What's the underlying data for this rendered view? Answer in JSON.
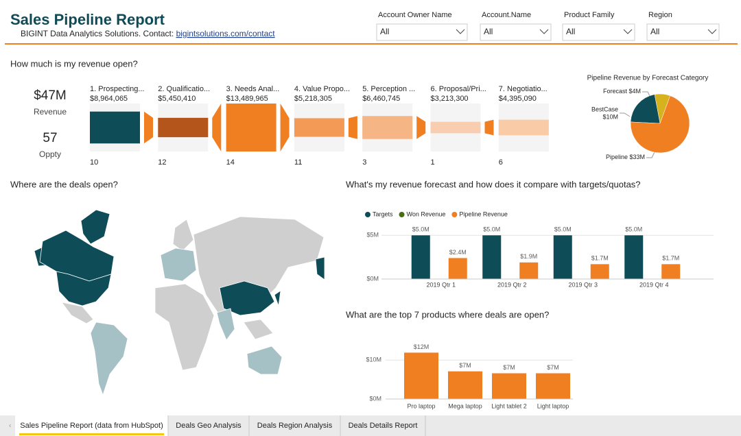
{
  "header": {
    "title": "Sales Pipeline Report",
    "subtitle": "BIGINT Data Analytics Solutions. Contact:",
    "link": "bigintsolutions.com/contact"
  },
  "filters": [
    {
      "label": "Account Owner Name",
      "value": "All"
    },
    {
      "label": "Account.Name",
      "value": "All"
    },
    {
      "label": "Product Family",
      "value": "All"
    },
    {
      "label": "Region",
      "value": "All"
    }
  ],
  "kpis": [
    {
      "value": "$47M",
      "label": "Revenue"
    },
    {
      "value": 57,
      "label": "Oppty"
    }
  ],
  "map": {
    "title": "Where are the deals open?"
  },
  "chart_data": [
    {
      "type": "funnel",
      "title": "How much is my revenue open?",
      "categories": [
        "1. Prospecting...",
        "2. Qualificatio...",
        "3. Needs Anal...",
        "4. Value Propo...",
        "5. Perception ...",
        "6. Proposal/Pri...",
        "7. Negotiatio..."
      ],
      "values": [
        8964065,
        5450410,
        13489965,
        5218305,
        6460745,
        3213300,
        4395090
      ],
      "value_labels": [
        "$8,964,065",
        "$5,450,410",
        "$13,489,965",
        "$5,218,305",
        "$6,460,745",
        "$3,213,300",
        "$4,395,090"
      ],
      "counts": [
        10,
        12,
        14,
        11,
        3,
        1,
        6
      ],
      "colors": [
        "#0e4c57",
        "#b4561c",
        "#f07f22",
        "#f39a57",
        "#f6b585",
        "#f8cdb0",
        "#f9cba6"
      ],
      "connector_color": "#f07f22"
    },
    {
      "type": "pie",
      "title": "Pipeline Revenue by Forecast Category",
      "categories": [
        "Forecast",
        "BestCase",
        "Pipeline"
      ],
      "values": [
        4000000,
        10000000,
        33000000
      ],
      "value_labels": [
        "$4M",
        "$10M",
        "$33M"
      ],
      "colors": [
        "#d7b21f",
        "#0e4c57",
        "#f07f22"
      ]
    },
    {
      "type": "bar",
      "title": "What's my revenue forecast and how does it compare with targets/quotas?",
      "categories": [
        "2019 Qtr 1",
        "2019 Qtr 2",
        "2019 Qtr 3",
        "2019 Qtr 4"
      ],
      "series": [
        {
          "name": "Targets",
          "color": "#0e4c57",
          "values": [
            5.0,
            5.0,
            5.0,
            5.0
          ],
          "value_labels": [
            "$5.0M",
            "$5.0M",
            "$5.0M",
            "$5.0M"
          ]
        },
        {
          "name": "Won Revenue",
          "color": "#4a6b17",
          "values": [
            null,
            null,
            null,
            null
          ]
        },
        {
          "name": "Pipeline Revenue",
          "color": "#f07f22",
          "values": [
            2.4,
            1.9,
            1.7,
            1.7
          ],
          "value_labels": [
            "$2.4M",
            "$1.9M",
            "$1.7M",
            "$1.7M"
          ]
        }
      ],
      "ylim": [
        0,
        6.2
      ],
      "yticks": [
        {
          "value": 0,
          "label": "$0M"
        },
        {
          "value": 5,
          "label": "$5M"
        }
      ],
      "grid": true,
      "legend": "top-left"
    },
    {
      "type": "bar",
      "title": "What are the top 7 products where deals are open?",
      "categories": [
        "Pro laptop",
        "Mega laptop",
        "Light tablet 2",
        "Light laptop"
      ],
      "values": [
        11.9,
        7.1,
        6.6,
        6.6
      ],
      "value_labels": [
        "$12M",
        "$7M",
        "$7M",
        "$7M"
      ],
      "color": "#f07f22",
      "ylim": [
        0,
        12.5
      ],
      "yticks": [
        {
          "value": 0,
          "label": "$0M"
        },
        {
          "value": 10,
          "label": "$10M"
        }
      ],
      "grid": true
    }
  ],
  "tabs": [
    "Sales Pipeline Report (data from HubSpot)",
    "Deals Geo Analysis",
    "Deals Region Analysis",
    "Deals Details Report"
  ]
}
